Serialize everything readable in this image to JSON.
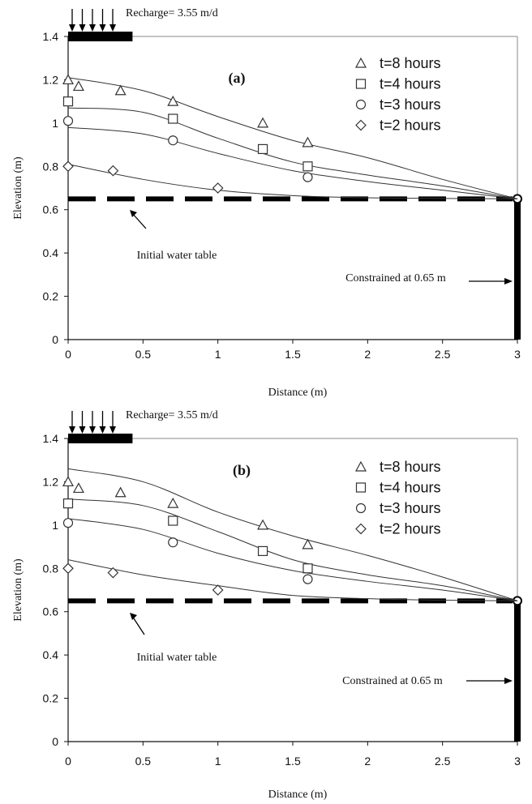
{
  "chart_data": [
    {
      "type": "scatter",
      "panel_label": "(a)",
      "xlabel": "Distance (m)",
      "ylabel": "Elevation (m)",
      "xlim": [
        0,
        3
      ],
      "ylim": [
        0,
        1.4
      ],
      "x_ticks": [
        "0",
        "0.5",
        "1",
        "1.5",
        "2",
        "2.5",
        "3"
      ],
      "y_ticks": [
        "0",
        "0.2",
        "0.4",
        "0.6",
        "0.8",
        "1",
        "1.2",
        "1.4"
      ],
      "grid": false,
      "legend_position": "top-right",
      "recharge_label": "Recharge= 3.55 m/d",
      "initial_water_table_label": "Initial water table",
      "initial_water_table_level": 0.65,
      "constraint_label": "Constrained at 0.65 m",
      "constraint_level": 0.65,
      "recharge_extent": [
        0,
        0.43
      ],
      "series": [
        {
          "name": "t=8 hours",
          "marker": "triangle",
          "points": [
            [
              0.0,
              1.2
            ],
            [
              0.07,
              1.17
            ],
            [
              0.35,
              1.15
            ],
            [
              0.7,
              1.1
            ],
            [
              1.3,
              1.0
            ],
            [
              1.6,
              0.91
            ]
          ],
          "curve": [
            [
              0.0,
              1.21
            ],
            [
              0.5,
              1.15
            ],
            [
              1.0,
              1.03
            ],
            [
              1.5,
              0.92
            ],
            [
              2.0,
              0.84
            ],
            [
              2.5,
              0.74
            ],
            [
              3.0,
              0.65
            ]
          ]
        },
        {
          "name": "t=4 hours",
          "marker": "square",
          "points": [
            [
              0.0,
              1.1
            ],
            [
              0.7,
              1.02
            ],
            [
              1.3,
              0.88
            ],
            [
              1.6,
              0.8
            ]
          ],
          "curve": [
            [
              0.0,
              1.07
            ],
            [
              0.5,
              1.05
            ],
            [
              1.0,
              0.93
            ],
            [
              1.5,
              0.82
            ],
            [
              2.0,
              0.76
            ],
            [
              2.5,
              0.71
            ],
            [
              3.0,
              0.65
            ]
          ]
        },
        {
          "name": "t=3 hours",
          "marker": "circle",
          "points": [
            [
              0.0,
              1.01
            ],
            [
              0.7,
              0.92
            ],
            [
              1.6,
              0.75
            ]
          ],
          "curve": [
            [
              0.0,
              0.98
            ],
            [
              0.5,
              0.95
            ],
            [
              1.0,
              0.86
            ],
            [
              1.5,
              0.78
            ],
            [
              2.0,
              0.73
            ],
            [
              2.5,
              0.69
            ],
            [
              3.0,
              0.65
            ]
          ]
        },
        {
          "name": "t=2 hours",
          "marker": "diamond",
          "points": [
            [
              0.0,
              0.8
            ],
            [
              0.3,
              0.78
            ],
            [
              1.0,
              0.7
            ]
          ],
          "curve": [
            [
              0.0,
              0.81
            ],
            [
              0.5,
              0.74
            ],
            [
              1.0,
              0.69
            ],
            [
              1.5,
              0.665
            ],
            [
              2.0,
              0.655
            ],
            [
              2.5,
              0.652
            ],
            [
              3.0,
              0.65
            ]
          ]
        }
      ]
    },
    {
      "type": "scatter",
      "panel_label": "(b)",
      "xlabel": "Distance (m)",
      "ylabel": "Elevation (m)",
      "xlim": [
        0,
        3
      ],
      "ylim": [
        0,
        1.4
      ],
      "x_ticks": [
        "0",
        "0.5",
        "1",
        "1.5",
        "2",
        "2.5",
        "3"
      ],
      "y_ticks": [
        "0",
        "0.2",
        "0.4",
        "0.6",
        "0.8",
        "1",
        "1.2",
        "1.4"
      ],
      "grid": false,
      "legend_position": "top-right",
      "recharge_label": "Recharge= 3.55 m/d",
      "initial_water_table_label": "Initial water table",
      "initial_water_table_level": 0.65,
      "constraint_label": "Constrained at 0.65 m",
      "constraint_level": 0.65,
      "recharge_extent": [
        0,
        0.43
      ],
      "series": [
        {
          "name": "t=8 hours",
          "marker": "triangle",
          "points": [
            [
              0.0,
              1.2
            ],
            [
              0.07,
              1.17
            ],
            [
              0.35,
              1.15
            ],
            [
              0.7,
              1.1
            ],
            [
              1.3,
              1.0
            ],
            [
              1.6,
              0.91
            ]
          ],
          "curve": [
            [
              0.0,
              1.26
            ],
            [
              0.5,
              1.2
            ],
            [
              1.0,
              1.06
            ],
            [
              1.5,
              0.95
            ],
            [
              2.0,
              0.86
            ],
            [
              2.5,
              0.76
            ],
            [
              3.0,
              0.65
            ]
          ]
        },
        {
          "name": "t=4 hours",
          "marker": "square",
          "points": [
            [
              0.0,
              1.1
            ],
            [
              0.7,
              1.02
            ],
            [
              1.3,
              0.88
            ],
            [
              1.6,
              0.8
            ]
          ],
          "curve": [
            [
              0.0,
              1.12
            ],
            [
              0.5,
              1.09
            ],
            [
              1.0,
              0.97
            ],
            [
              1.5,
              0.84
            ],
            [
              2.0,
              0.77
            ],
            [
              2.5,
              0.72
            ],
            [
              3.0,
              0.65
            ]
          ]
        },
        {
          "name": "t=3 hours",
          "marker": "circle",
          "points": [
            [
              0.0,
              1.01
            ],
            [
              0.7,
              0.92
            ],
            [
              1.6,
              0.75
            ]
          ],
          "curve": [
            [
              0.0,
              1.03
            ],
            [
              0.5,
              0.98
            ],
            [
              1.0,
              0.87
            ],
            [
              1.5,
              0.79
            ],
            [
              2.0,
              0.74
            ],
            [
              2.5,
              0.7
            ],
            [
              3.0,
              0.65
            ]
          ]
        },
        {
          "name": "t=2 hours",
          "marker": "diamond",
          "points": [
            [
              0.0,
              0.8
            ],
            [
              0.3,
              0.78
            ],
            [
              1.0,
              0.7
            ]
          ],
          "curve": [
            [
              0.0,
              0.84
            ],
            [
              0.5,
              0.77
            ],
            [
              1.0,
              0.72
            ],
            [
              1.5,
              0.675
            ],
            [
              2.0,
              0.66
            ],
            [
              2.5,
              0.653
            ],
            [
              3.0,
              0.65
            ]
          ]
        }
      ]
    }
  ]
}
